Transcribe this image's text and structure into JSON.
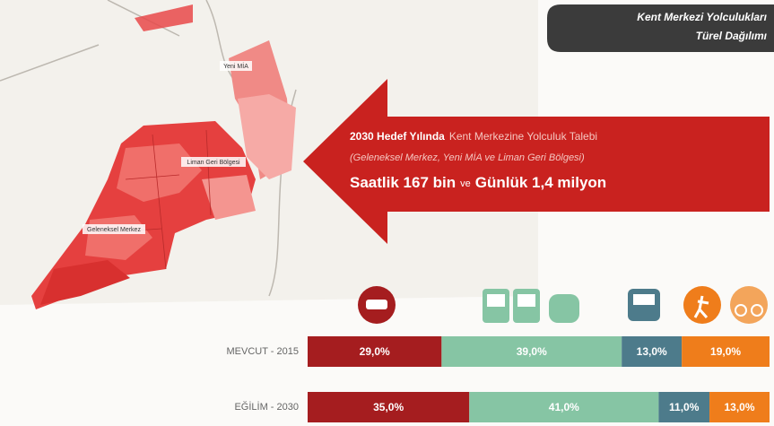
{
  "header": {
    "line1": "Kent Merkezi Yolculukları",
    "line2": "Türel Dağılımı"
  },
  "map": {
    "labels": [
      "Yeni MİA",
      "Liman Geri Bölgesi",
      "Geleneksel Merkez"
    ]
  },
  "arrow": {
    "bold": "2030 Hedef Yılında",
    "text": "Kent Merkezine Yolculuk Talebi",
    "subtitle": "(Geleneksel Merkez, Yeni MİA ve Liman Geri Bölgesi)",
    "hourly": "Saatlik 167 bin",
    "and": "ve",
    "daily": "Günlük 1,4 milyon"
  },
  "chart_data": {
    "type": "bar",
    "orientation": "horizontal",
    "stacked": true,
    "categories": [
      "MEVCUT - 2015",
      "EĞİLİM - 2030"
    ],
    "series": [
      {
        "color": "#a51d1f",
        "values": [
          29,
          35
        ],
        "value_labels": [
          "29,0%",
          "35,0%"
        ]
      },
      {
        "color": "#86c5a4",
        "values": [
          39,
          41
        ],
        "value_labels": [
          "39,0%",
          "41,0%"
        ]
      },
      {
        "color": "#4d7b8b",
        "values": [
          13,
          11
        ],
        "value_labels": [
          "13,0%",
          "11,0%"
        ]
      },
      {
        "color": "#ef7d1b",
        "values": [
          19,
          13
        ],
        "value_labels": [
          "19,0%",
          "13,0%"
        ]
      }
    ]
  }
}
